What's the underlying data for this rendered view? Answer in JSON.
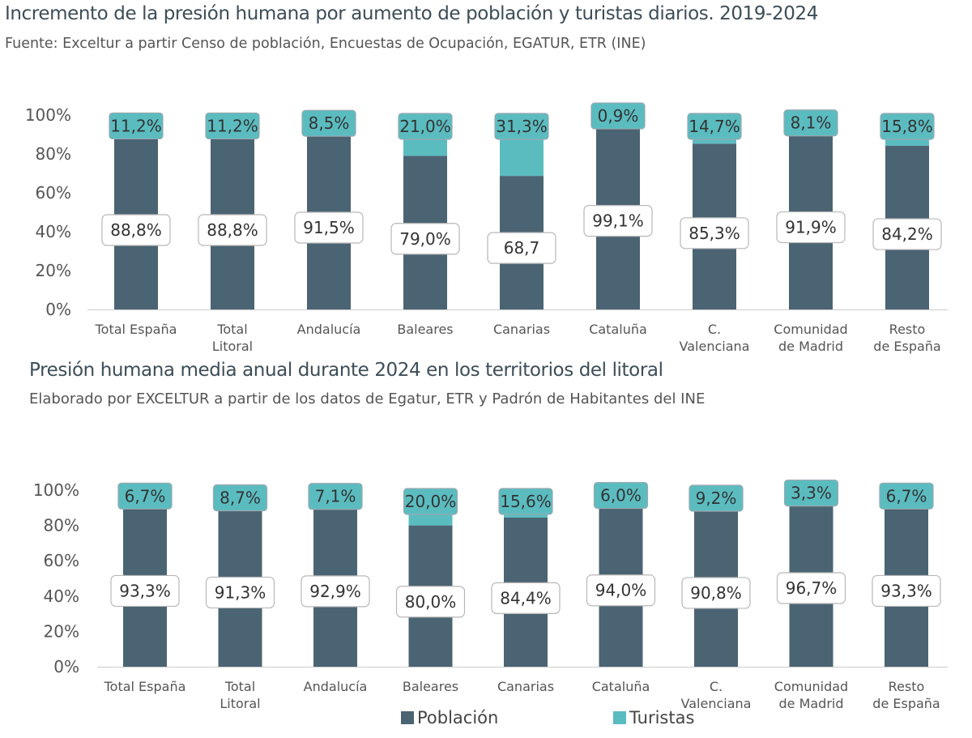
{
  "colors": {
    "poblacion": "#4b6473",
    "turistas": "#5bbcc0",
    "axis": "#cccccc"
  },
  "legend": {
    "poblacion": "Población",
    "turistas": "Turistas"
  },
  "chart_data": [
    {
      "type": "bar",
      "stacked": true,
      "title": "Incremento de la presión humana por aumento de población y turistas diarios. 2019-2024",
      "subtitle": "Fuente: Exceltur a partir Censo de población, Encuestas de Ocupación, EGATUR, ETR (INE)",
      "categories": [
        "Total España",
        "Total Litoral",
        "Andalucía",
        "Baleares",
        "Canarias",
        "Cataluña",
        "C. Valenciana",
        "Comunidad de Madrid",
        "Resto de España"
      ],
      "y_ticks": [
        "0%",
        "20%",
        "40%",
        "60%",
        "80%",
        "100%"
      ],
      "ylim": [
        0,
        100
      ],
      "series": [
        {
          "name": "Población",
          "values": [
            88.8,
            88.8,
            91.5,
            79.0,
            68.7,
            99.1,
            85.3,
            91.9,
            84.2
          ],
          "labels": [
            "88,8%",
            "88,8%",
            "91,5%",
            "79,0%",
            "68,7",
            "99,1%",
            "85,3%",
            "91,9%",
            "84,2%"
          ]
        },
        {
          "name": "Turistas",
          "values": [
            11.2,
            11.2,
            8.5,
            21.0,
            31.3,
            0.9,
            14.7,
            8.1,
            15.8
          ],
          "labels": [
            "11,2%",
            "11,2%",
            "8,5%",
            "21,0%",
            "31,3%",
            "0,9%",
            "14,7%",
            "8,1%",
            "15,8%"
          ]
        }
      ]
    },
    {
      "type": "bar",
      "stacked": true,
      "title": "Presión humana media anual durante 2024 en los territorios del litoral",
      "subtitle": "Elaborado por EXCELTUR a partir de los datos de Egatur, ETR y Padrón de Habitantes del INE",
      "categories": [
        "Total España",
        "Total Litoral",
        "Andalucía",
        "Baleares",
        "Canarias",
        "Cataluña",
        "C. Valenciana",
        "Comunidad de Madrid",
        "Resto de España"
      ],
      "y_ticks": [
        "0%",
        "20%",
        "40%",
        "60%",
        "80%",
        "100%"
      ],
      "ylim": [
        0,
        100
      ],
      "series": [
        {
          "name": "Población",
          "values": [
            93.3,
            91.3,
            92.9,
            80.0,
            84.4,
            94.0,
            90.8,
            96.7,
            93.3
          ],
          "labels": [
            "93,3%",
            "91,3%",
            "92,9%",
            "80,0%",
            "84,4%",
            "94,0%",
            "90,8%",
            "96,7%",
            "93,3%"
          ]
        },
        {
          "name": "Turistas",
          "values": [
            6.7,
            8.7,
            7.1,
            20.0,
            15.6,
            6.0,
            9.2,
            3.3,
            6.7
          ],
          "labels": [
            "6,7%",
            "8,7%",
            "7,1%",
            "20,0%",
            "15,6%",
            "6,0%",
            "9,2%",
            "3,3%",
            "6,7%"
          ]
        }
      ]
    }
  ]
}
